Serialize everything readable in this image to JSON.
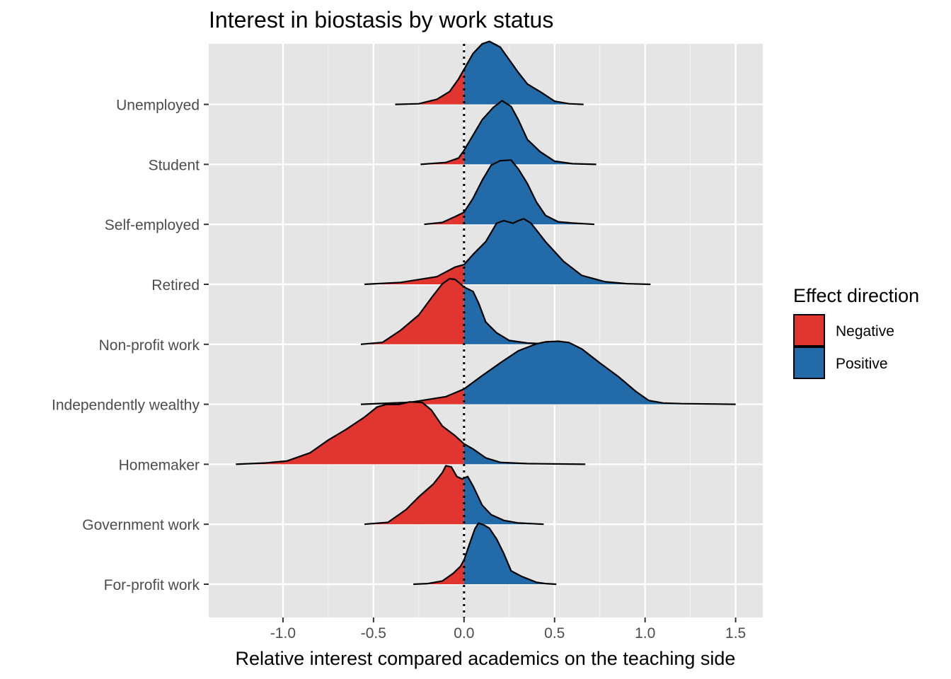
{
  "chart_data": {
    "type": "ridgeline",
    "title": "Interest in biostasis by work status",
    "xlabel": "Relative interest compared academics on the teaching side",
    "ylabel": "",
    "xlim": [
      -1.41,
      1.65
    ],
    "x_ticks": [
      -1.0,
      -0.5,
      0.0,
      0.5,
      1.0,
      1.5
    ],
    "x_tick_labels": [
      "-1.0",
      "-0.5",
      "0.0",
      "0.5",
      "1.0",
      "1.5"
    ],
    "reference_line": {
      "x": 0.0,
      "style": "dotted"
    },
    "categories": [
      "For-profit work",
      "Government work",
      "Homemaker",
      "Independently wealthy",
      "Non-profit work",
      "Retired",
      "Self-employed",
      "Student",
      "Unemployed"
    ],
    "legend": {
      "title": "Effect direction",
      "position": "right",
      "entries": [
        {
          "label": "Negative",
          "color": "#e0362f"
        },
        {
          "label": "Positive",
          "color": "#236ba8"
        }
      ]
    },
    "grid": true,
    "background": "#e5e5e5",
    "series": [
      {
        "category": "For-profit work",
        "points": [
          [
            -0.28,
            0
          ],
          [
            -0.2,
            0.01
          ],
          [
            -0.12,
            0.05
          ],
          [
            -0.06,
            0.17
          ],
          [
            -0.02,
            0.28
          ],
          [
            0.0,
            0.38
          ],
          [
            0.03,
            0.63
          ],
          [
            0.06,
            0.87
          ],
          [
            0.08,
            0.96
          ],
          [
            0.11,
            0.93
          ],
          [
            0.14,
            0.88
          ],
          [
            0.18,
            0.71
          ],
          [
            0.22,
            0.48
          ],
          [
            0.26,
            0.21
          ],
          [
            0.32,
            0.12
          ],
          [
            0.4,
            0.03
          ],
          [
            0.45,
            0.01
          ],
          [
            0.51,
            0
          ]
        ]
      },
      {
        "category": "Government work",
        "points": [
          [
            -0.55,
            0
          ],
          [
            -0.42,
            0.03
          ],
          [
            -0.32,
            0.23
          ],
          [
            -0.25,
            0.43
          ],
          [
            -0.17,
            0.63
          ],
          [
            -0.12,
            0.81
          ],
          [
            -0.1,
            0.92
          ],
          [
            -0.07,
            0.9
          ],
          [
            -0.04,
            0.75
          ],
          [
            -0.01,
            0.71
          ],
          [
            0.02,
            0.75
          ],
          [
            0.05,
            0.6
          ],
          [
            0.1,
            0.3
          ],
          [
            0.15,
            0.15
          ],
          [
            0.22,
            0.06
          ],
          [
            0.3,
            0.02
          ],
          [
            0.44,
            0
          ]
        ]
      },
      {
        "category": "Homemaker",
        "points": [
          [
            -1.26,
            0
          ],
          [
            -1.1,
            0.02
          ],
          [
            -0.98,
            0.05
          ],
          [
            -0.85,
            0.18
          ],
          [
            -0.75,
            0.38
          ],
          [
            -0.65,
            0.55
          ],
          [
            -0.55,
            0.74
          ],
          [
            -0.48,
            0.9
          ],
          [
            -0.43,
            0.94
          ],
          [
            -0.36,
            0.94
          ],
          [
            -0.3,
            0.98
          ],
          [
            -0.23,
            0.97
          ],
          [
            -0.18,
            0.85
          ],
          [
            -0.12,
            0.6
          ],
          [
            -0.05,
            0.45
          ],
          [
            0.0,
            0.32
          ],
          [
            0.05,
            0.24
          ],
          [
            0.12,
            0.1
          ],
          [
            0.2,
            0.03
          ],
          [
            0.35,
            0.01
          ],
          [
            0.67,
            0
          ]
        ]
      },
      {
        "category": "Independently wealthy",
        "points": [
          [
            -0.57,
            0
          ],
          [
            -0.3,
            0.03
          ],
          [
            -0.1,
            0.12
          ],
          [
            0.0,
            0.24
          ],
          [
            0.1,
            0.45
          ],
          [
            0.2,
            0.65
          ],
          [
            0.3,
            0.84
          ],
          [
            0.4,
            0.95
          ],
          [
            0.45,
            0.98
          ],
          [
            0.52,
            0.99
          ],
          [
            0.58,
            0.97
          ],
          [
            0.65,
            0.87
          ],
          [
            0.75,
            0.65
          ],
          [
            0.85,
            0.44
          ],
          [
            0.95,
            0.2
          ],
          [
            1.02,
            0.06
          ],
          [
            1.1,
            0.02
          ],
          [
            1.2,
            0.01
          ],
          [
            1.5,
            0
          ]
        ]
      },
      {
        "category": "Non-profit work",
        "points": [
          [
            -0.57,
            0
          ],
          [
            -0.45,
            0.03
          ],
          [
            -0.35,
            0.22
          ],
          [
            -0.25,
            0.46
          ],
          [
            -0.18,
            0.73
          ],
          [
            -0.12,
            0.95
          ],
          [
            -0.08,
            1.03
          ],
          [
            -0.05,
            1.02
          ],
          [
            -0.02,
            0.95
          ],
          [
            0.0,
            0.9
          ],
          [
            0.05,
            0.83
          ],
          [
            0.08,
            0.65
          ],
          [
            0.12,
            0.35
          ],
          [
            0.18,
            0.18
          ],
          [
            0.25,
            0.06
          ],
          [
            0.35,
            0.02
          ],
          [
            0.5,
            0
          ]
        ]
      },
      {
        "category": "Retired",
        "points": [
          [
            -0.55,
            0
          ],
          [
            -0.35,
            0.03
          ],
          [
            -0.15,
            0.12
          ],
          [
            -0.05,
            0.27
          ],
          [
            0.0,
            0.31
          ],
          [
            0.05,
            0.47
          ],
          [
            0.12,
            0.67
          ],
          [
            0.18,
            0.96
          ],
          [
            0.22,
            1.0
          ],
          [
            0.27,
            0.96
          ],
          [
            0.3,
            1.0
          ],
          [
            0.33,
            1.03
          ],
          [
            0.37,
            0.96
          ],
          [
            0.45,
            0.67
          ],
          [
            0.55,
            0.36
          ],
          [
            0.65,
            0.14
          ],
          [
            0.78,
            0.04
          ],
          [
            0.9,
            0.01
          ],
          [
            1.03,
            0
          ]
        ]
      },
      {
        "category": "Self-employed",
        "points": [
          [
            -0.22,
            0
          ],
          [
            -0.12,
            0.03
          ],
          [
            -0.05,
            0.12
          ],
          [
            0.0,
            0.19
          ],
          [
            0.05,
            0.41
          ],
          [
            0.1,
            0.69
          ],
          [
            0.15,
            0.93
          ],
          [
            0.2,
            1.0
          ],
          [
            0.26,
            1.01
          ],
          [
            0.3,
            0.87
          ],
          [
            0.35,
            0.64
          ],
          [
            0.4,
            0.35
          ],
          [
            0.45,
            0.14
          ],
          [
            0.52,
            0.04
          ],
          [
            0.6,
            0.02
          ],
          [
            0.72,
            0
          ]
        ]
      },
      {
        "category": "Student",
        "points": [
          [
            -0.24,
            0
          ],
          [
            -0.1,
            0.03
          ],
          [
            -0.03,
            0.1
          ],
          [
            0.0,
            0.22
          ],
          [
            0.05,
            0.46
          ],
          [
            0.1,
            0.7
          ],
          [
            0.16,
            0.89
          ],
          [
            0.21,
            1.0
          ],
          [
            0.26,
            0.91
          ],
          [
            0.3,
            0.7
          ],
          [
            0.35,
            0.39
          ],
          [
            0.42,
            0.2
          ],
          [
            0.5,
            0.05
          ],
          [
            0.6,
            0.01
          ],
          [
            0.73,
            0
          ]
        ]
      },
      {
        "category": "Unemployed",
        "points": [
          [
            -0.38,
            0
          ],
          [
            -0.25,
            0.01
          ],
          [
            -0.15,
            0.08
          ],
          [
            -0.08,
            0.2
          ],
          [
            -0.03,
            0.4
          ],
          [
            0.0,
            0.55
          ],
          [
            0.05,
            0.8
          ],
          [
            0.1,
            0.95
          ],
          [
            0.14,
            0.99
          ],
          [
            0.2,
            0.9
          ],
          [
            0.25,
            0.7
          ],
          [
            0.3,
            0.5
          ],
          [
            0.35,
            0.32
          ],
          [
            0.42,
            0.2
          ],
          [
            0.5,
            0.05
          ],
          [
            0.58,
            0.01
          ],
          [
            0.66,
            0
          ]
        ]
      }
    ]
  }
}
